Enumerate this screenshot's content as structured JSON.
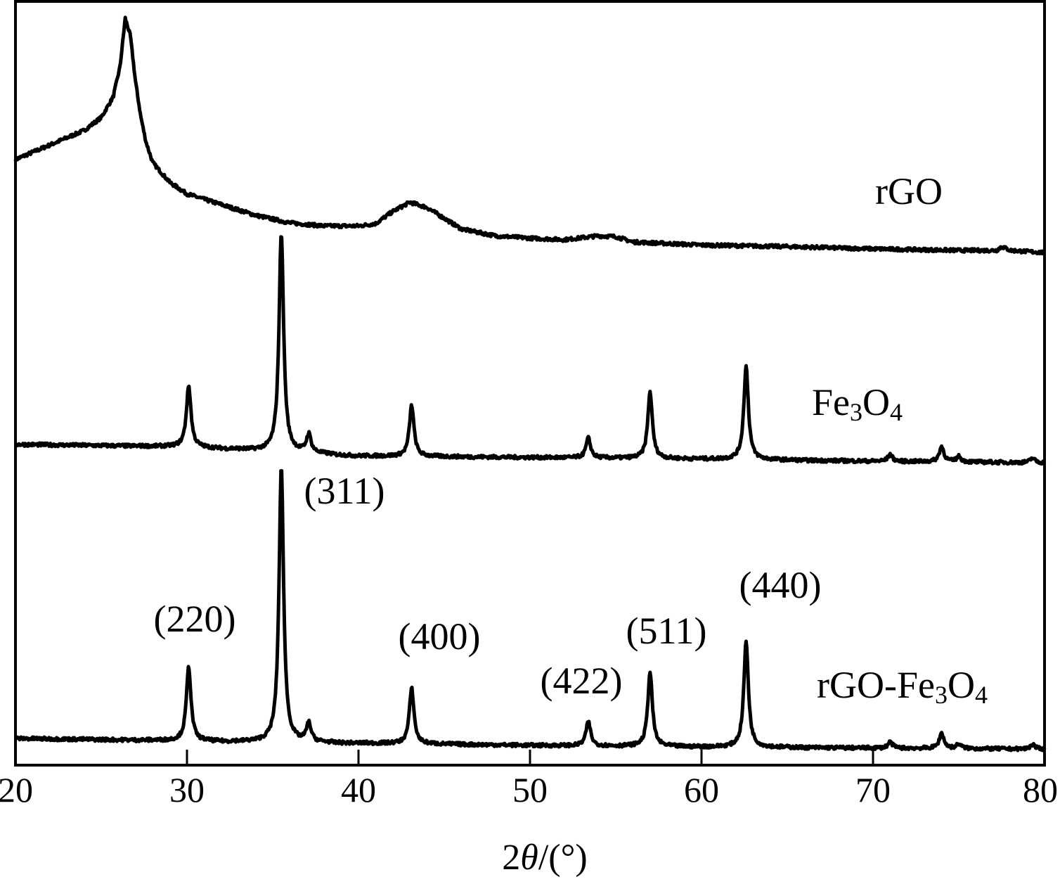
{
  "chart_data": {
    "type": "line",
    "title": "",
    "xlabel_prefix": "2",
    "xlabel_symbol": "θ",
    "xlabel_suffix": "/(°)",
    "ylabel": "",
    "xlim": [
      20,
      80
    ],
    "ylim": [
      0,
      100
    ],
    "y_ticks_shown": false,
    "grid": false,
    "x_ticks": [
      "20",
      "30",
      "40",
      "50",
      "60",
      "70",
      "80"
    ],
    "color": "#000000",
    "series": [
      {
        "name": "rGO",
        "baseline": [
          [
            20,
            79.3
          ],
          [
            22,
            81.2
          ],
          [
            24,
            83.1
          ],
          [
            25,
            84.8
          ],
          [
            25.7,
            87.5
          ],
          [
            26.1,
            91.5
          ],
          [
            26.4,
            97.8
          ],
          [
            26.7,
            95.5
          ],
          [
            27.0,
            89.5
          ],
          [
            27.3,
            85.0
          ],
          [
            27.6,
            81.7
          ],
          [
            28,
            78.9
          ],
          [
            29,
            76.3
          ],
          [
            30,
            74.8
          ],
          [
            32,
            73.4
          ],
          [
            34,
            72.0
          ],
          [
            36,
            71.0
          ],
          [
            38,
            70.6
          ],
          [
            40,
            70.6
          ],
          [
            41,
            70.9
          ],
          [
            42,
            72.5
          ],
          [
            43,
            73.7
          ],
          [
            44,
            73.0
          ],
          [
            45,
            71.6
          ],
          [
            46,
            70.2
          ],
          [
            48,
            69.3
          ],
          [
            50,
            69.0
          ],
          [
            52,
            68.8
          ],
          [
            54,
            69.3
          ],
          [
            55,
            69.2
          ],
          [
            56,
            68.5
          ],
          [
            60,
            68.1
          ],
          [
            65,
            67.9
          ],
          [
            70,
            67.6
          ],
          [
            75,
            67.4
          ],
          [
            77.2,
            67.4
          ],
          [
            77.5,
            67.9
          ],
          [
            78,
            67.4
          ],
          [
            80,
            67.1
          ]
        ],
        "peaks": []
      },
      {
        "name": "Fe3O4",
        "label_main": "Fe",
        "label_sub1": "3",
        "label_mid": "O",
        "label_sub2": "4",
        "baseline": [
          [
            20,
            42.0
          ],
          [
            30,
            41.7
          ],
          [
            40,
            40.5
          ],
          [
            50,
            40.3
          ],
          [
            60,
            40.1
          ],
          [
            70,
            39.8
          ],
          [
            80,
            39.6
          ]
        ],
        "peaks": [
          [
            30.1,
            8.0
          ],
          [
            35.5,
            28.7
          ],
          [
            37.1,
            2.4
          ],
          [
            43.1,
            6.7
          ],
          [
            53.4,
            2.6
          ],
          [
            57.0,
            8.7
          ],
          [
            62.6,
            12.2
          ],
          [
            71.0,
            0.9
          ],
          [
            74.0,
            2.0
          ],
          [
            75.0,
            0.7
          ],
          [
            79.3,
            0.6
          ]
        ]
      },
      {
        "name": "rGO-Fe3O4",
        "label_main": "rGO-Fe",
        "label_sub1": "3",
        "label_mid": "O",
        "label_sub2": "4",
        "baseline": [
          [
            20,
            3.5
          ],
          [
            30,
            3.2
          ],
          [
            35,
            3.0
          ],
          [
            40,
            2.9
          ],
          [
            50,
            2.6
          ],
          [
            60,
            2.4
          ],
          [
            80,
            2.1
          ]
        ],
        "peaks": [
          [
            30.1,
            9.7
          ],
          [
            35.5,
            35.9
          ],
          [
            37.1,
            2.4
          ],
          [
            43.1,
            7.3
          ],
          [
            53.4,
            3.2
          ],
          [
            57.0,
            9.7
          ],
          [
            62.6,
            13.8
          ],
          [
            71.0,
            0.8
          ],
          [
            74.0,
            2.0
          ],
          [
            75.0,
            0.6
          ],
          [
            79.3,
            0.6
          ]
        ]
      }
    ],
    "annotations": [
      "(220)",
      "(311)",
      "(400)",
      "(422)",
      "(511)",
      "(440)"
    ]
  }
}
